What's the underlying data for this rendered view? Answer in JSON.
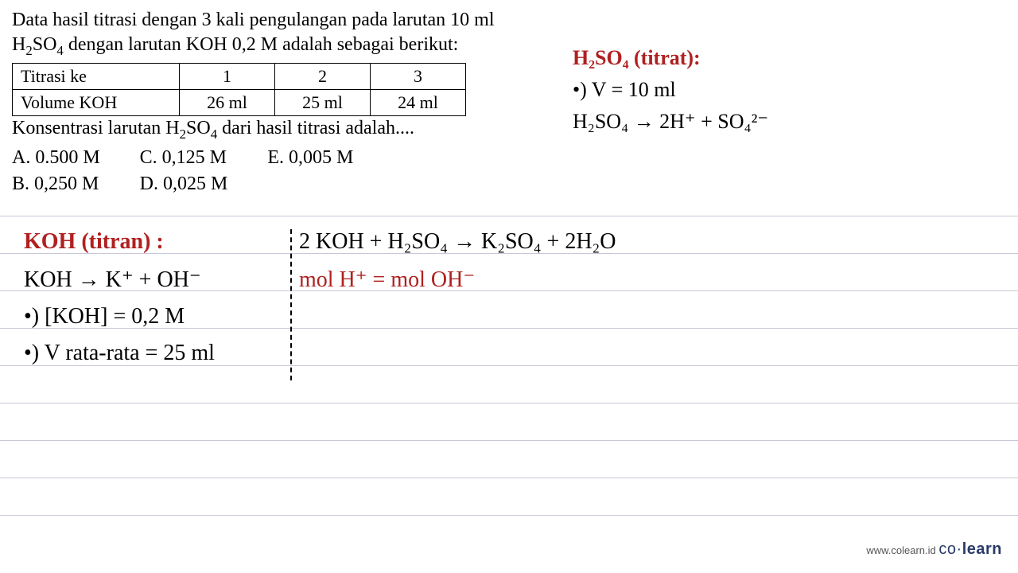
{
  "problem": {
    "line1": "Data hasil titrasi dengan 3 kali pengulangan pada larutan 10 ml",
    "line2_prefix": "H",
    "line2_sub1": "2",
    "line2_mid": "SO",
    "line2_sub2": "4",
    "line2_suffix": " dengan larutan KOH 0,2 M adalah sebagai berikut:",
    "table": {
      "row1": [
        "Titrasi ke",
        "1",
        "2",
        "3"
      ],
      "row2": [
        "Volume KOH",
        "26 ml",
        "25 ml",
        "24 ml"
      ]
    },
    "question_prefix": "Konsentrasi larutan H",
    "question_sub1": "2",
    "question_mid": "SO",
    "question_sub2": "4",
    "question_suffix": " dari hasil titrasi adalah....",
    "options": {
      "a": "A. 0.500 M",
      "b": "B. 0,250 M",
      "c": "C. 0,125 M",
      "d": "D. 0,025 M",
      "e": "E.  0,005 M"
    }
  },
  "hw_right": {
    "title": "H₂SO₄  (titrat):",
    "line1": "•) V = 10 ml",
    "line2": "H₂SO₄  →  2H⁺ + SO₄²⁻"
  },
  "hw_left": {
    "title": "KOH (titran) :",
    "line1": "KOH → K⁺ + OH⁻",
    "line2": "•) [KOH] = 0,2 M",
    "line3": "•) V rata-rata = 25 ml"
  },
  "hw_center": {
    "eq1": "2 KOH + H₂SO₄ →  K₂SO₄ + 2H₂O",
    "eq2": "mol H⁺ = mol OH⁻"
  },
  "footer": {
    "url": "www.colearn.id",
    "brand_left": "co",
    "brand_dot": "·",
    "brand_right": "learn"
  },
  "colors": {
    "handwritten_red": "#b02020",
    "handwritten_black": "#000000",
    "ruled_line": "#c8c8d8",
    "brand_color": "#2a3a6a"
  }
}
